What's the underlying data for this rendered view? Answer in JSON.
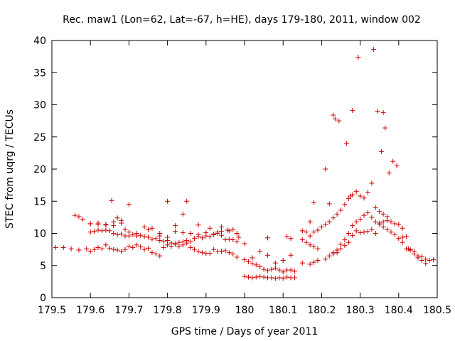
{
  "chart_data": {
    "type": "scatter",
    "title": "Rec. maw1 (Lon=62, Lat=-67, h=HE), days 179-180, 2011, window 002",
    "xlabel": "GPS time / Days of year 2011",
    "ylabel": "STEC from uqrg / TECUs",
    "xlim": [
      179.5,
      180.5
    ],
    "ylim": [
      0,
      40
    ],
    "xticks": [
      179.5,
      179.6,
      179.7,
      179.8,
      179.9,
      180.0,
      180.1,
      180.2,
      180.3,
      180.4,
      180.5
    ],
    "xtick_labels": [
      "179.5",
      "179.6",
      "179.7",
      "179.8",
      "179.9",
      "180",
      "180.1",
      "180.2",
      "180.3",
      "180.4",
      "180.5"
    ],
    "yticks": [
      0,
      5,
      10,
      15,
      20,
      25,
      30,
      35,
      40
    ],
    "ytick_labels": [
      "0",
      "5",
      "10",
      "15",
      "20",
      "25",
      "30",
      "35",
      "40"
    ],
    "grid": false,
    "marker": "+",
    "series": [
      {
        "name": "STEC",
        "color": "#cc0000",
        "x": [
          179.51,
          179.53,
          179.55,
          179.57,
          179.59,
          179.6,
          179.61,
          179.62,
          179.63,
          179.64,
          179.65,
          179.66,
          179.67,
          179.68,
          179.69,
          179.7,
          179.71,
          179.72,
          179.73,
          179.74,
          179.75,
          179.76,
          179.77,
          179.78,
          179.79,
          179.8,
          179.81,
          179.82,
          179.83,
          179.84,
          179.85,
          179.86,
          179.87,
          179.88,
          179.89,
          179.9,
          179.91,
          179.92,
          179.93,
          179.94,
          179.95,
          179.96,
          179.97,
          179.98,
          179.6,
          179.61,
          179.62,
          179.63,
          179.64,
          179.65,
          179.66,
          179.67,
          179.68,
          179.69,
          179.7,
          179.71,
          179.72,
          179.73,
          179.74,
          179.75,
          179.76,
          179.77,
          179.78,
          179.79,
          179.8,
          179.81,
          179.82,
          179.83,
          179.84,
          179.85,
          179.86,
          179.87,
          179.88,
          179.89,
          179.9,
          179.91,
          179.92,
          179.93,
          179.94,
          179.95,
          179.96,
          179.97,
          179.98,
          179.56,
          179.57,
          179.58,
          179.6,
          179.62,
          179.64,
          179.655,
          179.66,
          179.67,
          179.68,
          179.69,
          179.7,
          179.75,
          179.78,
          179.8,
          179.82,
          179.84,
          179.85,
          179.88,
          179.91,
          179.93,
          179.94,
          179.955,
          179.97,
          179.985,
          179.6,
          179.62,
          179.64,
          179.66,
          179.68,
          179.7,
          179.72,
          179.74,
          179.76,
          179.78,
          179.8,
          179.82,
          179.84,
          179.86,
          179.88,
          179.9,
          179.92,
          179.94,
          179.96,
          179.98,
          180.0,
          180.01,
          180.02,
          180.03,
          180.04,
          180.05,
          180.06,
          180.07,
          180.08,
          180.09,
          180.1,
          180.11,
          180.12,
          180.13,
          180.0,
          180.01,
          180.02,
          180.03,
          180.04,
          180.05,
          180.06,
          180.07,
          180.08,
          180.09,
          180.1,
          180.11,
          180.12,
          180.13,
          180.0,
          180.02,
          180.04,
          180.06,
          180.08,
          180.1,
          180.12,
          180.06,
          180.11,
          180.12,
          180.15,
          180.16,
          180.17,
          180.18,
          180.19,
          180.2,
          180.21,
          180.22,
          180.23,
          180.24,
          180.25,
          180.26,
          180.27,
          180.28,
          180.29,
          180.3,
          180.31,
          180.32,
          180.33,
          180.34,
          180.35,
          180.36,
          180.37,
          180.38,
          180.39,
          180.4,
          180.41,
          180.42,
          180.43,
          180.44,
          180.45,
          180.46,
          180.47,
          180.48,
          180.49,
          180.15,
          180.16,
          180.17,
          180.18,
          180.19,
          180.21,
          180.22,
          180.23,
          180.24,
          180.25,
          180.26,
          180.27,
          180.28,
          180.29,
          180.3,
          180.31,
          180.32,
          180.33,
          180.34,
          180.35,
          180.36,
          180.37,
          180.38,
          180.39,
          180.4,
          180.41,
          180.42,
          180.43,
          180.44,
          180.45,
          180.46,
          180.47,
          180.15,
          180.17,
          180.18,
          180.19,
          180.23,
          180.24,
          180.25,
          180.26,
          180.27,
          180.28,
          180.29,
          180.3,
          180.31,
          180.32,
          180.33,
          180.34,
          180.35,
          180.36,
          180.37,
          180.17,
          180.18,
          180.21,
          180.22,
          180.23,
          180.235,
          180.245,
          180.265,
          180.275,
          180.28,
          180.295,
          180.335,
          180.345,
          180.355,
          180.36,
          180.365,
          180.375,
          180.385,
          180.395,
          180.41,
          180.425
        ],
        "y": [
          7.8,
          7.8,
          7.6,
          7.4,
          7.6,
          7.2,
          7.5,
          7.8,
          7.6,
          8.2,
          7.7,
          7.5,
          7.4,
          7.2,
          7.5,
          8.0,
          7.8,
          8.2,
          7.9,
          7.5,
          7.7,
          7.0,
          6.8,
          6.5,
          7.8,
          8.2,
          8.0,
          8.3,
          8.0,
          8.2,
          8.5,
          7.8,
          7.5,
          7.2,
          7.0,
          6.9,
          6.9,
          7.5,
          7.2,
          7.2,
          7.3,
          7.0,
          6.8,
          6.3,
          10.2,
          10.3,
          10.5,
          10.4,
          10.5,
          10.4,
          10.0,
          9.8,
          9.9,
          9.6,
          9.6,
          9.8,
          9.6,
          9.7,
          9.5,
          9.4,
          9.1,
          9.2,
          8.9,
          8.8,
          8.9,
          8.5,
          8.4,
          8.6,
          8.7,
          8.9,
          8.7,
          9.2,
          9.5,
          9.3,
          9.6,
          9.5,
          9.8,
          10.0,
          9.7,
          9.0,
          9.1,
          9.0,
          8.7,
          12.8,
          12.6,
          12.2,
          11.5,
          11.4,
          11.3,
          15.1,
          11.2,
          12.4,
          12.0,
          10.6,
          14.5,
          10.6,
          10.0,
          15.0,
          11.2,
          13.0,
          15.0,
          11.3,
          10.8,
          10.2,
          11.0,
          10.5,
          10.6,
          9.4,
          11.5,
          11.6,
          11.4,
          11.8,
          11.6,
          10.2,
          10.0,
          11.0,
          10.8,
          9.6,
          9.4,
          10.3,
          10.1,
          10.0,
          9.8,
          10.1,
          9.9,
          10.3,
          10.4,
          10.0,
          5.9,
          5.6,
          5.3,
          5.1,
          4.8,
          4.4,
          4.2,
          4.4,
          4.6,
          4.3,
          4.0,
          4.3,
          4.3,
          4.1,
          3.3,
          3.2,
          3.1,
          3.2,
          3.3,
          3.2,
          3.1,
          3.1,
          3.0,
          3.1,
          3.0,
          3.2,
          3.1,
          3.1,
          8.4,
          6.2,
          7.2,
          6.6,
          5.4,
          5.8,
          6.6,
          9.3,
          9.5,
          9.2,
          10.4,
          10.2,
          9.6,
          10.2,
          10.5,
          11.0,
          11.4,
          11.8,
          12.4,
          13.0,
          13.6,
          14.5,
          15.4,
          16.0,
          16.5,
          15.8,
          15.5,
          16.4,
          17.8,
          14.0,
          13.4,
          13.0,
          12.6,
          11.8,
          11.5,
          11.4,
          10.8,
          9.5,
          7.5,
          7.2,
          6.5,
          6.4,
          6.0,
          5.8,
          5.9,
          9.0,
          8.6,
          8.2,
          7.9,
          7.6,
          6.0,
          6.5,
          7.0,
          7.4,
          8.3,
          9.0,
          10.0,
          11.2,
          11.8,
          12.2,
          12.8,
          13.2,
          12.5,
          11.8,
          11.4,
          11.0,
          10.6,
          10.2,
          9.8,
          9.2,
          8.6,
          7.6,
          7.4,
          6.8,
          6.2,
          5.8,
          5.3,
          5.4,
          5.2,
          5.5,
          5.8,
          6.8,
          7.0,
          7.6,
          8.1,
          8.6,
          9.7,
          10.4,
          10.1,
          10.2,
          10.3,
          10.6,
          10.0,
          11.6,
          11.8,
          12.0,
          11.8,
          14.8,
          20.0,
          14.6,
          28.4,
          27.8,
          27.5,
          24.0,
          15.8,
          29.1,
          37.4,
          38.6,
          29.0,
          22.7,
          28.8,
          26.4,
          19.4,
          21.2,
          20.5,
          9.4,
          7.6
        ]
      }
    ]
  }
}
